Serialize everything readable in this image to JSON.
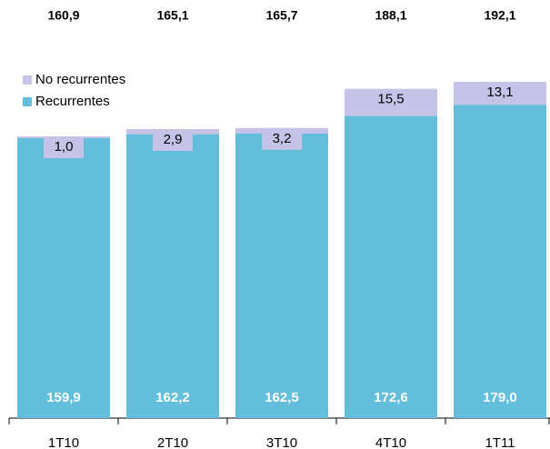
{
  "chart_data": {
    "type": "stacked_bar",
    "categories": [
      "1T10",
      "2T10",
      "3T10",
      "4T10",
      "1T11"
    ],
    "series": [
      {
        "name": "Recurrentes",
        "color": "#62bedb",
        "values": [
          159.9,
          162.2,
          162.5,
          172.6,
          179.0
        ],
        "value_labels": [
          "159,9",
          "162,2",
          "162,5",
          "172,6",
          "179,0"
        ]
      },
      {
        "name": "No recurrentes",
        "color": "#c5c3e8",
        "values": [
          1.0,
          2.9,
          3.2,
          15.5,
          13.1
        ],
        "value_labels": [
          "1,0",
          "2,9",
          "3,2",
          "15,5",
          "13,1"
        ]
      }
    ],
    "totals": {
      "values": [
        160.9,
        165.1,
        165.7,
        188.1,
        192.1
      ],
      "value_labels": [
        "160,9",
        "165,1",
        "165,7",
        "188,1",
        "192,1"
      ]
    }
  }
}
